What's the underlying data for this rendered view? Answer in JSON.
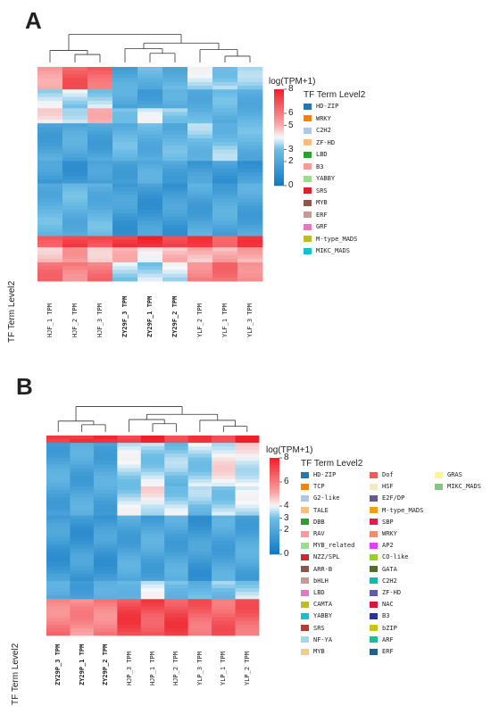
{
  "panel_a": {
    "letter": "A",
    "side_label": "TF Term Level2",
    "colorbar_title": "log(TPM+1)",
    "colorbar_ticks": [
      "8",
      "6",
      "5",
      "3",
      "2",
      "0"
    ],
    "legend_title": "TF Term Level2",
    "legend_items": [
      {
        "label": "HD-ZIP",
        "color": "#1f77b4"
      },
      {
        "label": "WRKY",
        "color": "#ff7f0e"
      },
      {
        "label": "C2H2",
        "color": "#aec7e8"
      },
      {
        "label": "ZF-HD",
        "color": "#ffbb78"
      },
      {
        "label": "LBD",
        "color": "#2ca02c"
      },
      {
        "label": "B3",
        "color": "#ff9896"
      },
      {
        "label": "YABBY",
        "color": "#98df8a"
      },
      {
        "label": "SRS",
        "color": "#d62728"
      },
      {
        "label": "MYB",
        "color": "#8c564b"
      },
      {
        "label": "ERF",
        "color": "#c49c94"
      },
      {
        "label": "GRF",
        "color": "#e377c2"
      },
      {
        "label": "M-type_MADS",
        "color": "#bcbd22"
      },
      {
        "label": "MIKC_MADS",
        "color": "#17becf"
      }
    ],
    "columns": [
      {
        "label": "HJF_1 TPM",
        "bold": false
      },
      {
        "label": "HJF_2 TPM",
        "bold": false
      },
      {
        "label": "HJF_3 TPM",
        "bold": false
      },
      {
        "label": "ZY29F_3 TPM",
        "bold": true
      },
      {
        "label": "ZY29F_1 TPM",
        "bold": true
      },
      {
        "label": "ZY29F_2 TPM",
        "bold": true
      },
      {
        "label": "YLF_2 TPM",
        "bold": false
      },
      {
        "label": "YLF_1 TPM",
        "bold": false
      },
      {
        "label": "YLF_3 TPM",
        "bold": false
      }
    ]
  },
  "panel_b": {
    "letter": "B",
    "side_label": "TF Term Level2",
    "colorbar_title": "log(TPM+1)",
    "colorbar_ticks": [
      "8",
      "6",
      "4",
      "3",
      "2",
      "0"
    ],
    "legend_title": "TF Term Level2",
    "legend_items": [
      {
        "label": "HD-ZIP",
        "color": "#1f77b4"
      },
      {
        "label": "TCP",
        "color": "#ff7f0e"
      },
      {
        "label": "G2-like",
        "color": "#aec7e8"
      },
      {
        "label": "TALE",
        "color": "#ffbb78"
      },
      {
        "label": "DBB",
        "color": "#2ca02c"
      },
      {
        "label": "RAV",
        "color": "#ff9896"
      },
      {
        "label": "MYB_related",
        "color": "#98df8a"
      },
      {
        "label": "NZZ/SPL",
        "color": "#d62728"
      },
      {
        "label": "ARR-B",
        "color": "#8c564b"
      },
      {
        "label": "bHLH",
        "color": "#c49c94"
      },
      {
        "label": "LBD",
        "color": "#e377c2"
      },
      {
        "label": "CAMTA",
        "color": "#bcbd22"
      },
      {
        "label": "YABBY",
        "color": "#17becf"
      },
      {
        "label": "SRS",
        "color": "#c0392b"
      },
      {
        "label": "NF-YA",
        "color": "#9edae5"
      },
      {
        "label": "MYB",
        "color": "#f7c98b"
      },
      {
        "label": "Dof",
        "color": "#f25c54"
      },
      {
        "label": "HSF",
        "color": "#f6e8c3"
      },
      {
        "label": "E2F/DP",
        "color": "#6a5a8c"
      },
      {
        "label": "M-type_MADS",
        "color": "#f39c12"
      },
      {
        "label": "SBP",
        "color": "#e6194b"
      },
      {
        "label": "WRKY",
        "color": "#f58c6e"
      },
      {
        "label": "AP2",
        "color": "#e040fb"
      },
      {
        "label": "CO-like",
        "color": "#9acd32"
      },
      {
        "label": "GATA",
        "color": "#556b2f"
      },
      {
        "label": "C2H2",
        "color": "#20b2aa"
      },
      {
        "label": "ZF-HD",
        "color": "#5b5ea6"
      },
      {
        "label": "NAC",
        "color": "#dc143c"
      },
      {
        "label": "B3",
        "color": "#283593"
      },
      {
        "label": "bZIP",
        "color": "#c9c31f"
      },
      {
        "label": "ARF",
        "color": "#1abc9c"
      },
      {
        "label": "ERF",
        "color": "#1f5f8b"
      },
      {
        "label": "GRAS",
        "color": "#fff68f"
      },
      {
        "label": "MIKC_MADS",
        "color": "#7fc97f"
      }
    ],
    "columns": [
      {
        "label": "ZY29P_3 TPM",
        "bold": true
      },
      {
        "label": "ZY29P_1 TPM",
        "bold": true
      },
      {
        "label": "ZY29P_2 TPM",
        "bold": true
      },
      {
        "label": "HJP_3 TPM",
        "bold": false
      },
      {
        "label": "HJP_1 TPM",
        "bold": false
      },
      {
        "label": "HJP_2 TPM",
        "bold": false
      },
      {
        "label": "YLP_3 TPM",
        "bold": false
      },
      {
        "label": "YLP_1 TPM",
        "bold": false
      },
      {
        "label": "YLP_2 TPM",
        "bold": false
      }
    ]
  },
  "chart_data": [
    {
      "type": "heatmap",
      "title": "",
      "colorbar_label": "log(TPM+1)",
      "value_range": [
        0,
        8
      ],
      "columns": [
        "HJF_1 TPM",
        "HJF_2 TPM",
        "HJF_3 TPM",
        "ZY29F_3 TPM",
        "ZY29F_1 TPM",
        "ZY29F_2 TPM",
        "YLF_2 TPM",
        "YLF_1 TPM",
        "YLF_3 TPM"
      ],
      "row_blocks": [
        {
          "values": [
            5.5,
            6.5,
            6.5,
            2.0,
            2.5,
            2.5,
            3.5,
            3.5,
            3.0
          ]
        },
        {
          "values": [
            3.5,
            3.5,
            3.5,
            2.0,
            2.0,
            2.0,
            2.5,
            2.5,
            2.5
          ]
        },
        {
          "values": [
            4.0,
            4.0,
            4.5,
            3.5,
            3.5,
            3.5,
            2.5,
            2.5,
            2.5
          ]
        },
        {
          "values": [
            2.0,
            2.0,
            2.0,
            2.5,
            2.5,
            2.5,
            3.0,
            3.0,
            2.5
          ]
        },
        {
          "values": [
            1.5,
            1.5,
            1.5,
            2.0,
            2.0,
            2.0,
            1.5,
            1.5,
            1.5
          ]
        },
        {
          "values": [
            2.5,
            2.5,
            2.5,
            1.5,
            1.5,
            1.5,
            2.0,
            2.0,
            2.0
          ]
        },
        {
          "values": [
            7.0,
            7.0,
            7.0,
            7.5,
            7.5,
            7.5,
            7.0,
            7.0,
            7.0
          ]
        },
        {
          "values": [
            5.0,
            5.0,
            5.0,
            4.5,
            4.5,
            4.5,
            5.0,
            5.0,
            5.0
          ]
        },
        {
          "values": [
            6.0,
            6.0,
            6.0,
            3.5,
            3.5,
            3.5,
            6.0,
            6.0,
            6.0
          ]
        }
      ]
    },
    {
      "type": "heatmap",
      "title": "",
      "colorbar_label": "log(TPM+1)",
      "value_range": [
        0,
        8
      ],
      "columns": [
        "ZY29P_3 TPM",
        "ZY29P_1 TPM",
        "ZY29P_2 TPM",
        "HJP_3 TPM",
        "HJP_1 TPM",
        "HJP_2 TPM",
        "YLP_3 TPM",
        "YLP_1 TPM",
        "YLP_2 TPM"
      ],
      "row_blocks": [
        {
          "values": [
            7.5,
            7.5,
            7.5,
            7.5,
            7.5,
            7.5,
            7.0,
            7.5,
            7.5
          ]
        },
        {
          "values": [
            2.0,
            2.0,
            2.0,
            3.5,
            3.5,
            3.0,
            3.5,
            4.0,
            4.0
          ]
        },
        {
          "values": [
            2.0,
            2.0,
            2.0,
            3.5,
            4.0,
            3.5,
            3.0,
            3.5,
            3.5
          ]
        },
        {
          "values": [
            1.5,
            1.5,
            1.5,
            2.0,
            2.0,
            2.0,
            1.5,
            2.0,
            2.0
          ]
        },
        {
          "values": [
            2.0,
            2.0,
            2.0,
            3.0,
            3.5,
            3.0,
            2.5,
            3.0,
            3.5
          ]
        },
        {
          "values": [
            6.0,
            5.5,
            6.0,
            7.0,
            7.0,
            7.0,
            6.5,
            6.5,
            6.5
          ]
        }
      ]
    }
  ]
}
